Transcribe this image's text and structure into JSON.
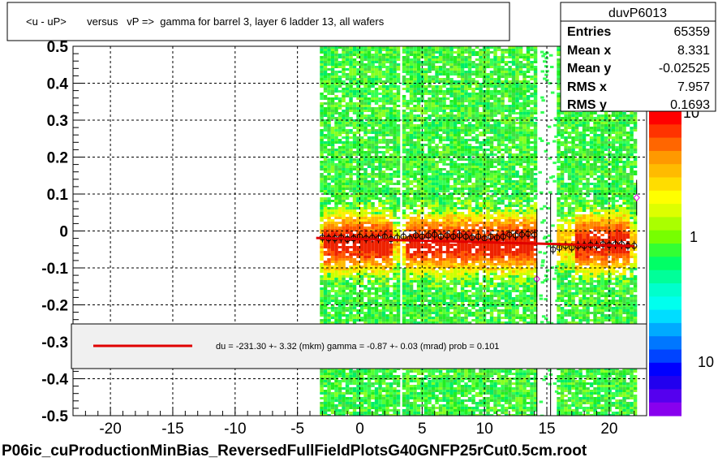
{
  "chart_data": {
    "type": "scatter",
    "title": "<u - uP>       versus   vP =>  gamma for barrel 3, layer 6 ladder 13, all wafers",
    "footer": "P06ic_cuProductionMinBias_ReversedFullFieldPlotsG40GNFP25rCut0.5cm.root",
    "xlim": [
      -23,
      23
    ],
    "ylim": [
      -0.5,
      0.5
    ],
    "x_ticks": [
      -20,
      -15,
      -10,
      -5,
      0,
      5,
      10,
      15,
      20
    ],
    "x_tick_labels": [
      "-20",
      "-15",
      "-10",
      "-5",
      "0",
      "5",
      "10",
      "15",
      "20"
    ],
    "y_ticks": [
      -0.5,
      -0.4,
      -0.3,
      -0.2,
      -0.1,
      0,
      0.1,
      0.2,
      0.3,
      0.4,
      0.5
    ],
    "y_tick_labels": [
      "-0.5",
      "-0.4",
      "-0.3",
      "-0.2",
      "-0.1",
      "0",
      "0.1",
      "0.2",
      "0.3",
      "0.4",
      "0.5"
    ],
    "grid": true,
    "stats": {
      "name": "duvP6013",
      "rows": [
        {
          "label": "Entries",
          "value": "65359"
        },
        {
          "label": "Mean x",
          "value": "8.331"
        },
        {
          "label": "Mean y",
          "value": "-0.02525"
        },
        {
          "label": "RMS x",
          "value": "7.957"
        },
        {
          "label": "RMS y",
          "value": "0.1693"
        }
      ]
    },
    "fit_legend": "du = -231.30 +-  3.32 (mkm) gamma =   -0.87 +-  0.03 (mrad) prob = 0.101",
    "fit_line": {
      "color": "#e00000",
      "x": [
        -3.5,
        22
      ],
      "y": [
        -0.019,
        -0.041
      ]
    },
    "colorbar_labels": [
      "10",
      "1",
      "10"
    ],
    "bands": [
      {
        "x": [
          -3.2,
          3.2
        ],
        "core_x": [
          -3,
          2.5
        ]
      },
      {
        "x": [
          3.4,
          14.2
        ],
        "core_x": [
          3.5,
          14
        ]
      },
      {
        "x": [
          15.8,
          22.2
        ],
        "core_x": [
          17,
          21.5
        ]
      }
    ],
    "profile": {
      "x": [
        -3,
        -2.5,
        -2,
        -1.5,
        -1,
        -0.5,
        0,
        0.5,
        1,
        1.5,
        2,
        2.5,
        3,
        3.5,
        4,
        4.5,
        5,
        5.5,
        6,
        6.5,
        7,
        7.5,
        8,
        8.5,
        9,
        9.5,
        10,
        10.5,
        11,
        11.5,
        12,
        12.5,
        13,
        13.5,
        14,
        15.5,
        16,
        16.5,
        17,
        17.5,
        18,
        18.5,
        19,
        19.5,
        20,
        20.5,
        21,
        21.5,
        22
      ],
      "y": [
        -0.018,
        -0.02,
        -0.02,
        -0.018,
        -0.022,
        -0.02,
        -0.015,
        -0.02,
        -0.018,
        -0.02,
        -0.015,
        -0.022,
        -0.018,
        -0.015,
        -0.02,
        -0.012,
        -0.015,
        -0.012,
        -0.01,
        -0.015,
        -0.012,
        -0.015,
        -0.012,
        -0.015,
        -0.018,
        -0.015,
        -0.02,
        -0.015,
        -0.018,
        -0.015,
        -0.01,
        -0.012,
        -0.01,
        -0.008,
        -0.01,
        -0.05,
        -0.045,
        -0.04,
        -0.045,
        -0.04,
        -0.04,
        -0.038,
        -0.04,
        -0.036,
        -0.038,
        -0.036,
        -0.036,
        -0.04,
        -0.04
      ]
    },
    "outliers": [
      {
        "x": 14.2,
        "y": -0.13
      },
      {
        "x": 22.2,
        "y": 0.09
      }
    ]
  }
}
